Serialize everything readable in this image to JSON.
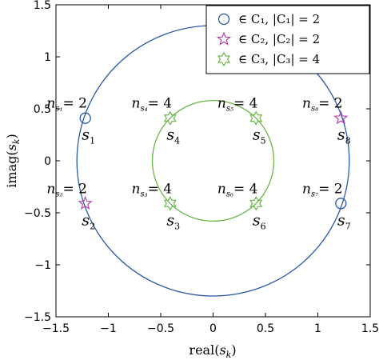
{
  "chart_data": {
    "type": "scatter",
    "xlabel": "real(s_k)",
    "ylabel": "imag(s_k)",
    "xlim": [
      -1.5,
      1.5
    ],
    "ylim": [
      -1.5,
      1.5
    ],
    "xticks": [
      "−1.5",
      "−1",
      "−0.5",
      "0",
      "0.5",
      "1",
      "1.5"
    ],
    "yticks": [
      "−1.5",
      "−1",
      "−0.5",
      "0",
      "0.5",
      "1",
      "1.5"
    ],
    "grid": false,
    "legend_position": "top-right",
    "circles": [
      {
        "radius": 1.3,
        "color": "#2a5aa8"
      },
      {
        "radius": 0.58,
        "color": "#6ab648"
      }
    ],
    "series": [
      {
        "name": "∈ C₁,  |C₁| = 2",
        "marker": "circle",
        "color": "#2a5aa8",
        "points": [
          [
            -1.22,
            0.41
          ],
          [
            1.22,
            -0.41
          ]
        ]
      },
      {
        "name": "∈ C₂,  |C₂| = 2",
        "marker": "star5",
        "color": "#b04aa8",
        "points": [
          [
            -1.22,
            -0.41
          ],
          [
            1.22,
            0.41
          ]
        ]
      },
      {
        "name": "∈ C₃,  |C₃| = 4",
        "marker": "star6",
        "color": "#6ab648",
        "points": [
          [
            -0.41,
            0.41
          ],
          [
            0.41,
            0.41
          ],
          [
            -0.41,
            -0.41
          ],
          [
            0.41,
            -0.41
          ]
        ]
      }
    ],
    "annotations": [
      {
        "label": "s",
        "sub": "1",
        "n_label": "n",
        "n_sub": "s₁",
        "n_value": "= 2",
        "x": -1.22,
        "y": 0.41
      },
      {
        "label": "s",
        "sub": "2",
        "n_label": "n",
        "n_sub": "s₂",
        "n_value": "= 2",
        "x": -1.22,
        "y": -0.41
      },
      {
        "label": "s",
        "sub": "3",
        "n_label": "n",
        "n_sub": "s₃",
        "n_value": "= 4",
        "x": -0.41,
        "y": -0.41
      },
      {
        "label": "s",
        "sub": "4",
        "n_label": "n",
        "n_sub": "s₄",
        "n_value": "= 4",
        "x": -0.41,
        "y": 0.41
      },
      {
        "label": "s",
        "sub": "5",
        "n_label": "n",
        "n_sub": "s₅",
        "n_value": "= 4",
        "x": 0.41,
        "y": 0.41
      },
      {
        "label": "s",
        "sub": "6",
        "n_label": "n",
        "n_sub": "s₆",
        "n_value": "= 4",
        "x": 0.41,
        "y": -0.41
      },
      {
        "label": "s",
        "sub": "7",
        "n_label": "n",
        "n_sub": "s₇",
        "n_value": "= 2",
        "x": 1.22,
        "y": -0.41
      },
      {
        "label": "s",
        "sub": "8",
        "n_label": "n",
        "n_sub": "s₈",
        "n_value": "= 2",
        "x": 1.22,
        "y": 0.41
      }
    ]
  }
}
